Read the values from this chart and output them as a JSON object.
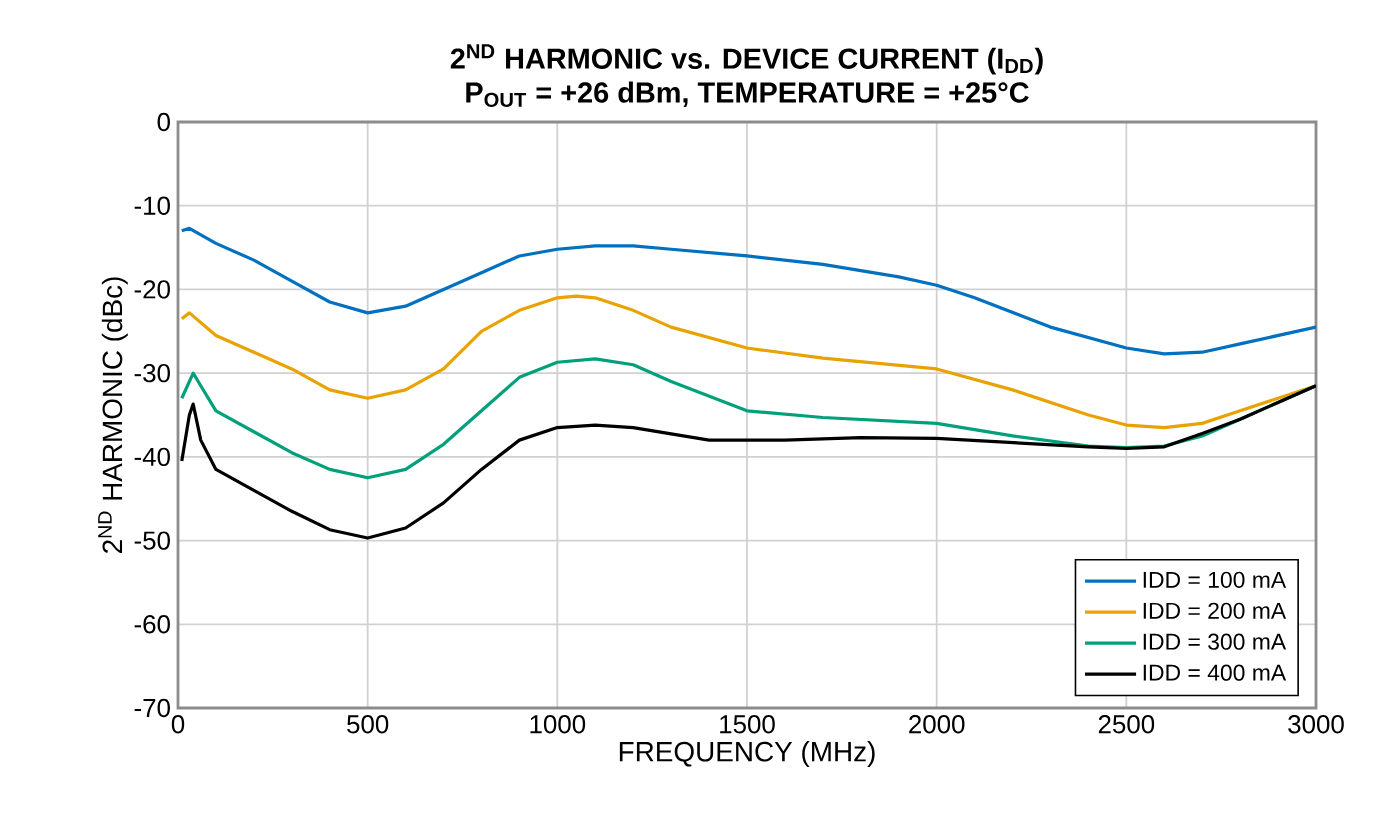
{
  "chart_data": {
    "type": "line",
    "title": "2$^{ND}$ HARMONIC vs. DEVICE CURRENT (I$_{DD}$)",
    "subtitle": "P$_{OUT}$ = +26 dBm, TEMPERATURE = +25°C",
    "xlabel": "FREQUENCY (MHz)",
    "ylabel": "2$^{ND}$ HARMONIC (dBc)",
    "xlim": [
      0,
      3000
    ],
    "xticks": [
      0,
      500,
      1000,
      1500,
      2000,
      2500,
      3000
    ],
    "ylim": [
      -70,
      0
    ],
    "yticks": [
      -70,
      -60,
      -50,
      -40,
      -30,
      -20,
      -10,
      0
    ],
    "grid": true,
    "legend": "bottom right",
    "marker": "none",
    "line_style": "solid",
    "series": [
      {
        "name": "IDD = 100 mA",
        "color": "#0070c0",
        "x": [
          10,
          30,
          100,
          200,
          300,
          400,
          500,
          600,
          700,
          800,
          900,
          1000,
          1100,
          1200,
          1300,
          1500,
          1700,
          1900,
          2000,
          2100,
          2300,
          2500,
          2600,
          2700,
          2800,
          3000
        ],
        "values": [
          -13,
          -12.7,
          -14.5,
          -16.5,
          -19,
          -21.5,
          -22.8,
          -22,
          -20,
          -18,
          -16,
          -15.2,
          -14.8,
          -14.8,
          -15.2,
          -16,
          -17,
          -18.5,
          -19.5,
          -21,
          -24.5,
          -27,
          -27.7,
          -27.5,
          -26.5,
          -24.5
        ]
      },
      {
        "name": "IDD = 200 mA",
        "color": "#e8a202",
        "x": [
          10,
          30,
          100,
          200,
          300,
          400,
          500,
          600,
          700,
          800,
          900,
          1000,
          1050,
          1100,
          1200,
          1300,
          1500,
          1700,
          2000,
          2200,
          2400,
          2500,
          2600,
          2700,
          2800,
          3000
        ],
        "values": [
          -23.5,
          -22.8,
          -25.5,
          -27.5,
          -29.5,
          -32,
          -33,
          -32,
          -29.5,
          -25,
          -22.5,
          -21,
          -20.8,
          -21,
          -22.5,
          -24.5,
          -27,
          -28.2,
          -29.5,
          -32,
          -35,
          -36.2,
          -36.5,
          -36,
          -34.5,
          -31.5
        ]
      },
      {
        "name": "IDD = 300 mA",
        "color": "#00a07a",
        "x": [
          10,
          40,
          60,
          100,
          200,
          300,
          400,
          500,
          600,
          700,
          800,
          900,
          1000,
          1100,
          1200,
          1300,
          1500,
          1700,
          2000,
          2200,
          2400,
          2500,
          2600,
          2700,
          2800,
          3000
        ],
        "values": [
          -33,
          -30,
          -31.5,
          -34.5,
          -37,
          -39.5,
          -41.5,
          -42.5,
          -41.5,
          -38.5,
          -34.5,
          -30.5,
          -28.7,
          -28.3,
          -29,
          -31,
          -34.5,
          -35.3,
          -36,
          -37.5,
          -38.7,
          -38.9,
          -38.7,
          -37.5,
          -35.5,
          -31.5
        ]
      },
      {
        "name": "IDD = 400 mA",
        "color": "#000000",
        "x": [
          10,
          30,
          40,
          60,
          100,
          200,
          300,
          400,
          500,
          600,
          700,
          800,
          900,
          1000,
          1100,
          1200,
          1400,
          1600,
          1800,
          2000,
          2200,
          2400,
          2500,
          2600,
          2700,
          2800,
          3000
        ],
        "values": [
          -40.5,
          -35,
          -33.7,
          -38,
          -41.5,
          -44,
          -46.5,
          -48.7,
          -49.7,
          -48.5,
          -45.5,
          -41.5,
          -38,
          -36.5,
          -36.2,
          -36.5,
          -38,
          -38,
          -37.7,
          -37.8,
          -38.3,
          -38.8,
          -39,
          -38.8,
          -37.2,
          -35.5,
          -31.5
        ]
      }
    ]
  }
}
